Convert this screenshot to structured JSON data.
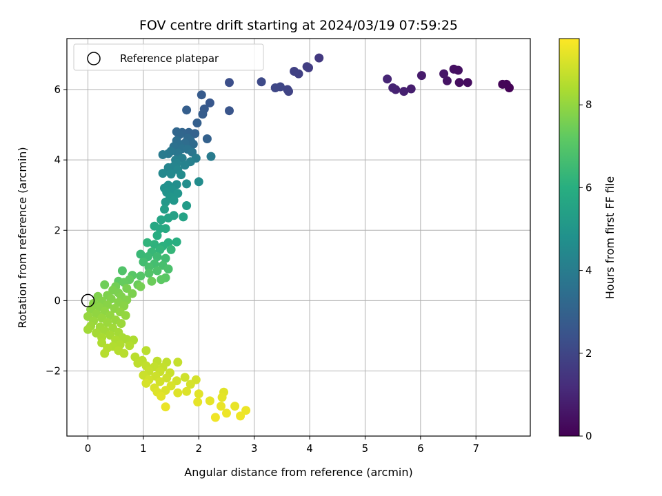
{
  "chart_data": {
    "type": "scatter",
    "title": "FOV centre drift starting at 2024/03/19 07:59:25",
    "xlabel": "Angular distance from reference (arcmin)",
    "ylabel": "Rotation from reference (arcmin)",
    "xlim": [
      -0.38,
      7.98
    ],
    "ylim": [
      -3.85,
      7.45
    ],
    "xticks": [
      "0",
      "1",
      "2",
      "3",
      "4",
      "5",
      "6",
      "7"
    ],
    "yticks": [
      "−2",
      "0",
      "2",
      "4",
      "6"
    ],
    "grid": true,
    "colormap": "viridis",
    "colorbar": {
      "label": "Hours from first FF file",
      "range": [
        0,
        9.6
      ],
      "ticks": [
        "0",
        "2",
        "4",
        "6",
        "8"
      ]
    },
    "legend": {
      "placement": "upper-left",
      "entries": [
        "Reference platepar"
      ]
    },
    "reference_point": {
      "x": 0,
      "y": 0,
      "marker": "open-circle"
    },
    "points": [
      [
        7.6,
        6.05,
        0.05
      ],
      [
        7.55,
        6.15,
        0.08
      ],
      [
        7.48,
        6.15,
        0.1
      ],
      [
        6.85,
        6.2,
        0.3
      ],
      [
        6.7,
        6.2,
        0.35
      ],
      [
        6.68,
        6.55,
        0.4
      ],
      [
        6.6,
        6.58,
        0.42
      ],
      [
        6.48,
        6.25,
        0.5
      ],
      [
        6.42,
        6.45,
        0.55
      ],
      [
        6.02,
        6.4,
        0.7
      ],
      [
        5.83,
        6.02,
        0.8
      ],
      [
        5.7,
        5.95,
        0.85
      ],
      [
        5.55,
        6.0,
        0.9
      ],
      [
        5.5,
        6.05,
        0.95
      ],
      [
        5.4,
        6.3,
        1.0
      ],
      [
        4.17,
        6.9,
        1.6
      ],
      [
        3.98,
        6.62,
        1.7
      ],
      [
        3.95,
        6.65,
        1.75
      ],
      [
        3.8,
        6.45,
        1.8
      ],
      [
        3.72,
        6.52,
        1.85
      ],
      [
        3.62,
        5.95,
        1.9
      ],
      [
        3.6,
        6.0,
        1.95
      ],
      [
        3.47,
        6.08,
        2.0
      ],
      [
        3.38,
        6.05,
        2.05
      ],
      [
        3.13,
        6.22,
        2.15
      ],
      [
        2.55,
        6.2,
        2.3
      ],
      [
        2.55,
        5.4,
        2.5
      ],
      [
        2.2,
        5.62,
        2.6
      ],
      [
        2.1,
        5.45,
        2.7
      ],
      [
        2.05,
        5.85,
        2.75
      ],
      [
        2.07,
        5.3,
        2.8
      ],
      [
        1.78,
        5.42,
        2.85
      ],
      [
        1.97,
        5.05,
        2.9
      ],
      [
        2.15,
        4.6,
        2.95
      ],
      [
        1.93,
        4.75,
        3.0
      ],
      [
        1.82,
        4.78,
        3.05
      ],
      [
        1.7,
        4.78,
        3.1
      ],
      [
        1.6,
        4.8,
        3.15
      ],
      [
        1.65,
        4.72,
        3.2
      ],
      [
        1.8,
        4.62,
        3.25
      ],
      [
        1.85,
        4.55,
        3.3
      ],
      [
        1.9,
        4.45,
        3.35
      ],
      [
        1.75,
        4.48,
        3.4
      ],
      [
        1.6,
        4.55,
        3.45
      ],
      [
        1.65,
        4.42,
        3.5
      ],
      [
        1.55,
        4.38,
        3.55
      ],
      [
        1.7,
        4.32,
        3.6
      ],
      [
        1.8,
        4.3,
        3.65
      ],
      [
        1.88,
        4.22,
        3.7
      ],
      [
        1.62,
        4.2,
        3.75
      ],
      [
        1.5,
        4.25,
        3.8
      ],
      [
        1.45,
        4.18,
        3.85
      ],
      [
        1.35,
        4.15,
        3.9
      ],
      [
        2.22,
        4.1,
        3.95
      ],
      [
        1.95,
        4.05,
        4.0
      ],
      [
        1.7,
        4.05,
        4.05
      ],
      [
        1.58,
        4.0,
        4.1
      ],
      [
        1.85,
        3.95,
        4.15
      ],
      [
        1.75,
        3.85,
        4.2
      ],
      [
        1.6,
        3.9,
        4.25
      ],
      [
        1.55,
        3.82,
        4.3
      ],
      [
        1.45,
        3.78,
        4.35
      ],
      [
        1.62,
        3.72,
        4.4
      ],
      [
        1.35,
        3.62,
        4.45
      ],
      [
        1.5,
        3.6,
        4.5
      ],
      [
        1.68,
        3.58,
        4.55
      ],
      [
        2.0,
        3.38,
        4.6
      ],
      [
        1.78,
        3.32,
        4.65
      ],
      [
        1.6,
        3.3,
        4.7
      ],
      [
        1.45,
        3.28,
        4.75
      ],
      [
        1.38,
        3.2,
        4.8
      ],
      [
        1.52,
        3.15,
        4.85
      ],
      [
        1.42,
        3.08,
        4.9
      ],
      [
        1.62,
        3.05,
        4.95
      ],
      [
        1.48,
        2.95,
        5.0
      ],
      [
        1.55,
        2.85,
        5.05
      ],
      [
        1.4,
        2.8,
        5.1
      ],
      [
        1.78,
        2.7,
        5.2
      ],
      [
        1.38,
        2.6,
        5.3
      ],
      [
        1.55,
        2.42,
        5.4
      ],
      [
        1.45,
        2.35,
        5.5
      ],
      [
        1.72,
        2.38,
        5.55
      ],
      [
        1.32,
        2.3,
        5.6
      ],
      [
        1.2,
        2.12,
        5.7
      ],
      [
        1.3,
        2.05,
        5.75
      ],
      [
        1.4,
        2.05,
        5.8
      ],
      [
        1.25,
        1.85,
        5.9
      ],
      [
        1.6,
        1.67,
        6.0
      ],
      [
        1.45,
        1.65,
        6.05
      ],
      [
        1.35,
        1.55,
        6.1
      ],
      [
        1.2,
        1.6,
        6.15
      ],
      [
        1.07,
        1.65,
        6.2
      ],
      [
        1.3,
        1.45,
        6.25
      ],
      [
        1.5,
        1.45,
        6.3
      ],
      [
        1.15,
        1.38,
        6.35
      ],
      [
        0.95,
        1.32,
        6.4
      ],
      [
        1.08,
        1.25,
        6.45
      ],
      [
        1.25,
        1.25,
        6.5
      ],
      [
        1.4,
        1.2,
        6.55
      ],
      [
        1.0,
        1.1,
        6.6
      ],
      [
        1.2,
        1.05,
        6.65
      ],
      [
        1.35,
        1.0,
        6.7
      ],
      [
        1.1,
        0.95,
        6.75
      ],
      [
        1.45,
        0.9,
        6.8
      ],
      [
        1.25,
        0.85,
        6.85
      ],
      [
        0.62,
        0.85,
        6.9
      ],
      [
        1.1,
        0.78,
        6.95
      ],
      [
        0.95,
        0.7,
        7.0
      ],
      [
        0.8,
        0.72,
        7.05
      ],
      [
        1.4,
        0.65,
        7.1
      ],
      [
        1.32,
        0.6,
        7.15
      ],
      [
        0.55,
        0.55,
        7.2
      ],
      [
        0.75,
        0.6,
        7.25
      ],
      [
        0.65,
        0.52,
        7.3
      ],
      [
        0.9,
        0.45,
        7.35
      ],
      [
        1.15,
        0.55,
        7.4
      ],
      [
        0.3,
        0.45,
        7.45
      ],
      [
        0.5,
        0.4,
        7.5
      ],
      [
        0.95,
        0.4,
        7.55
      ],
      [
        0.7,
        0.35,
        7.6
      ],
      [
        0.45,
        0.3,
        7.62
      ],
      [
        0.55,
        0.22,
        7.64
      ],
      [
        0.8,
        0.2,
        7.66
      ],
      [
        0.35,
        0.15,
        7.68
      ],
      [
        0.6,
        0.12,
        7.7
      ],
      [
        0.18,
        0.12,
        7.72
      ],
      [
        0.42,
        0.05,
        7.74
      ],
      [
        0.7,
        0.02,
        7.76
      ],
      [
        0.25,
        -0.02,
        7.78
      ],
      [
        0.55,
        -0.05,
        7.8
      ],
      [
        0.1,
        -0.08,
        7.82
      ],
      [
        0.35,
        -0.12,
        7.84
      ],
      [
        0.65,
        -0.15,
        7.86
      ],
      [
        0.2,
        -0.18,
        7.88
      ],
      [
        0.48,
        -0.22,
        7.9
      ],
      [
        0.05,
        -0.25,
        7.92
      ],
      [
        0.3,
        -0.3,
        7.94
      ],
      [
        0.58,
        -0.32,
        7.96
      ],
      [
        0.15,
        -0.38,
        7.98
      ],
      [
        0.4,
        -0.42,
        8.0
      ],
      [
        0.68,
        -0.42,
        8.02
      ],
      [
        0.0,
        -0.45,
        8.04
      ],
      [
        0.25,
        -0.5,
        8.06
      ],
      [
        0.5,
        -0.55,
        8.08
      ],
      [
        0.1,
        -0.58,
        8.1
      ],
      [
        0.35,
        -0.62,
        8.12
      ],
      [
        0.6,
        -0.65,
        8.14
      ],
      [
        0.05,
        -0.72,
        8.16
      ],
      [
        0.22,
        -0.75,
        8.18
      ],
      [
        0.45,
        -0.78,
        8.2
      ],
      [
        0.0,
        -0.82,
        8.22
      ],
      [
        0.3,
        -0.85,
        8.24
      ],
      [
        0.55,
        -0.9,
        8.26
      ],
      [
        0.15,
        -0.92,
        8.28
      ],
      [
        0.4,
        -0.98,
        8.3
      ],
      [
        0.62,
        -1.05,
        8.32
      ],
      [
        0.25,
        -1.05,
        8.34
      ],
      [
        0.7,
        -1.1,
        8.36
      ],
      [
        0.5,
        -1.12,
        8.38
      ],
      [
        0.82,
        -1.12,
        8.4
      ],
      [
        0.25,
        -1.2,
        8.42
      ],
      [
        0.58,
        -1.25,
        8.44
      ],
      [
        0.45,
        -1.3,
        8.46
      ],
      [
        0.75,
        -1.28,
        8.48
      ],
      [
        0.35,
        -1.35,
        8.5
      ],
      [
        0.55,
        -1.42,
        8.52
      ],
      [
        0.3,
        -1.5,
        8.54
      ],
      [
        0.65,
        -1.5,
        8.56
      ],
      [
        1.05,
        -1.42,
        8.58
      ],
      [
        0.85,
        -1.6,
        8.6
      ],
      [
        0.98,
        -1.7,
        8.62
      ],
      [
        1.25,
        -1.72,
        8.64
      ],
      [
        0.9,
        -1.78,
        8.66
      ],
      [
        1.42,
        -1.75,
        8.68
      ],
      [
        1.05,
        -1.85,
        8.7
      ],
      [
        1.2,
        -1.88,
        8.72
      ],
      [
        1.35,
        -1.9,
        8.74
      ],
      [
        1.62,
        -1.75,
        8.76
      ],
      [
        1.1,
        -2.0,
        8.78
      ],
      [
        1.3,
        -2.02,
        8.8
      ],
      [
        1.48,
        -2.05,
        8.82
      ],
      [
        1.0,
        -2.12,
        8.84
      ],
      [
        1.22,
        -2.15,
        8.86
      ],
      [
        1.42,
        -2.2,
        8.88
      ],
      [
        1.75,
        -2.18,
        8.9
      ],
      [
        1.1,
        -2.25,
        8.92
      ],
      [
        1.3,
        -2.3,
        8.94
      ],
      [
        1.6,
        -2.28,
        8.96
      ],
      [
        1.95,
        -2.25,
        8.98
      ],
      [
        1.85,
        -2.38,
        9.0
      ],
      [
        1.05,
        -2.35,
        9.02
      ],
      [
        1.5,
        -2.42,
        9.04
      ],
      [
        1.2,
        -2.48,
        9.06
      ],
      [
        1.4,
        -2.55,
        9.08
      ],
      [
        1.78,
        -2.58,
        9.1
      ],
      [
        1.25,
        -2.6,
        9.12
      ],
      [
        1.62,
        -2.62,
        9.14
      ],
      [
        2.45,
        -2.6,
        9.16
      ],
      [
        2.0,
        -2.65,
        9.18
      ],
      [
        1.32,
        -2.72,
        9.2
      ],
      [
        2.42,
        -2.75,
        9.22
      ],
      [
        2.2,
        -2.85,
        9.24
      ],
      [
        1.98,
        -2.88,
        9.26
      ],
      [
        2.65,
        -3.0,
        9.28
      ],
      [
        2.4,
        -3.0,
        9.3
      ],
      [
        1.4,
        -3.02,
        9.32
      ],
      [
        2.85,
        -3.12,
        9.34
      ],
      [
        2.5,
        -3.2,
        9.36
      ],
      [
        2.75,
        -3.28,
        9.38
      ],
      [
        2.3,
        -3.32,
        9.4
      ]
    ]
  }
}
